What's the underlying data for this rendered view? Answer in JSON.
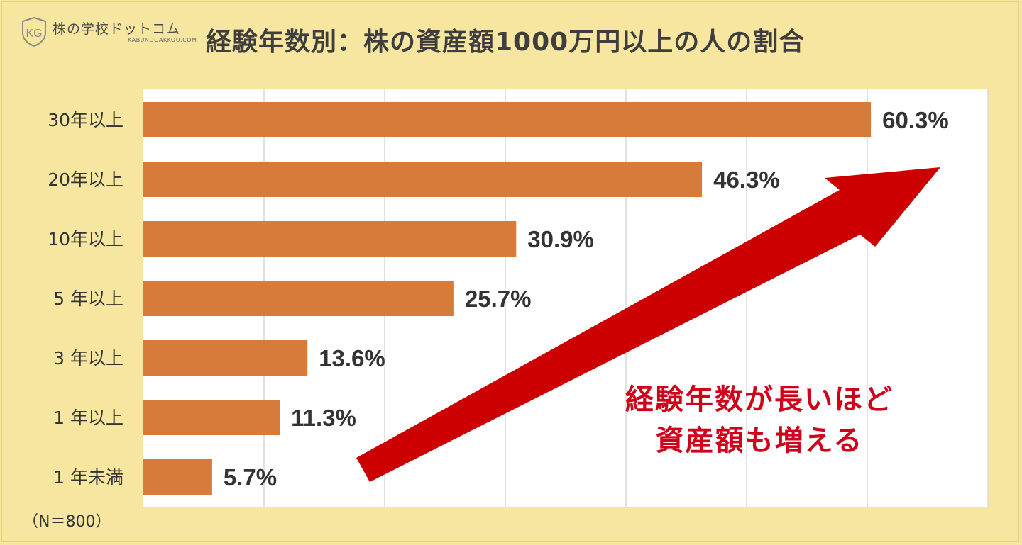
{
  "logo": {
    "mark": "KG",
    "name": "株の学校ドットコム",
    "url": "KABUNOGAKKOU.COM"
  },
  "note": "（N＝800）",
  "callout": {
    "line1": "経験年数が長いほど",
    "line2": "資産額も増える",
    "color": "#d0021b"
  },
  "colors": {
    "bar": "#d67b3a",
    "background": "#f7e6a0",
    "plot": "#ffffff",
    "grid": "#d9d9d9",
    "arrow": "#cc0000"
  },
  "chart_data": {
    "type": "bar",
    "orientation": "horizontal",
    "title": "経験年数別：株の資産額1000万円以上の人の割合",
    "xlabel": "",
    "ylabel": "",
    "xlim": [
      0,
      70
    ],
    "grid": true,
    "categories": [
      "30年以上",
      "20年以上",
      "10年以上",
      "5 年以上",
      "3 年以上",
      "1 年以上",
      "1 年未満"
    ],
    "values": [
      60.3,
      46.3,
      30.9,
      25.7,
      13.6,
      11.3,
      5.7
    ],
    "value_labels": [
      "60.3%",
      "46.3%",
      "30.9%",
      "25.7%",
      "13.6%",
      "11.3%",
      "5.7%"
    ]
  }
}
